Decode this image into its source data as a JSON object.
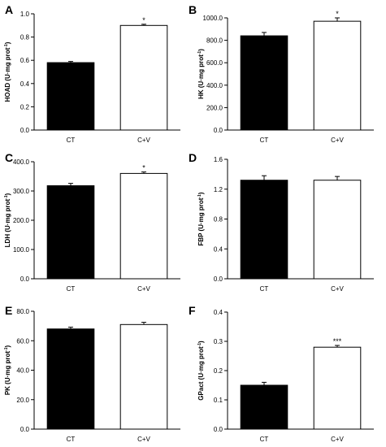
{
  "figure": {
    "colors": {
      "ct_fill": "#000000",
      "cv_fill": "#ffffff",
      "stroke": "#000000"
    }
  },
  "chart_data": [
    {
      "panel": "A",
      "type": "bar",
      "categories": [
        "CT",
        "C+V"
      ],
      "values": [
        0.58,
        0.9
      ],
      "errors": [
        0.01,
        0.01
      ],
      "significance": [
        "",
        "*"
      ],
      "ylabel_main": "HOAD (U·mg prot",
      "ylabel_sup": "-1",
      "ylabel_end": ")",
      "ylim": [
        0,
        1.0
      ],
      "yticks": [
        0,
        0.2,
        0.4,
        0.6,
        0.8,
        1.0
      ],
      "yticklabels": [
        "0.0",
        "0.2",
        "0.4",
        "0.6",
        "0.8",
        "1.0"
      ]
    },
    {
      "panel": "B",
      "type": "bar",
      "categories": [
        "CT",
        "C+V"
      ],
      "values": [
        840,
        970
      ],
      "errors": [
        30,
        30
      ],
      "significance": [
        "",
        "*"
      ],
      "ylabel_main": "HK (U·mg prot",
      "ylabel_sup": "-1",
      "ylabel_end": ")",
      "ylim": [
        0,
        1000
      ],
      "yticks": [
        0,
        200,
        400,
        600,
        800,
        1000
      ],
      "yticklabels": [
        "0.0",
        "200.0",
        "400.0",
        "600.0",
        "800.0",
        "1000.0"
      ]
    },
    {
      "panel": "C",
      "type": "bar",
      "categories": [
        "CT",
        "C+V"
      ],
      "values": [
        318,
        360
      ],
      "errors": [
        8,
        5
      ],
      "significance": [
        "",
        "*"
      ],
      "ylabel_main": "LDH (U·mg prot",
      "ylabel_sup": "-1",
      "ylabel_end": ")",
      "ylim": [
        0,
        400
      ],
      "yticks": [
        0,
        100,
        200,
        300,
        400
      ],
      "yticklabels": [
        "0.0",
        "100.0",
        "200.0",
        "300.0",
        "400.0"
      ]
    },
    {
      "panel": "D",
      "type": "bar",
      "categories": [
        "CT",
        "C+V"
      ],
      "values": [
        1.32,
        1.32
      ],
      "errors": [
        0.06,
        0.05
      ],
      "significance": [
        "",
        ""
      ],
      "ylabel_main": "FBP (U·mg prot",
      "ylabel_sup": "-1",
      "ylabel_end": ")",
      "ylim": [
        0,
        1.6
      ],
      "yticks": [
        0,
        0.4,
        0.8,
        1.2,
        1.6
      ],
      "yticklabels": [
        "0.0",
        "0.4",
        "0.8",
        "1.2",
        "1.6"
      ]
    },
    {
      "panel": "E",
      "type": "bar",
      "categories": [
        "CT",
        "C+V"
      ],
      "values": [
        68,
        71
      ],
      "errors": [
        1.2,
        1.5
      ],
      "significance": [
        "",
        ""
      ],
      "ylabel_main": "PK (U·mg prot",
      "ylabel_sup": "-1",
      "ylabel_end": ")",
      "ylim": [
        0,
        80
      ],
      "yticks": [
        0,
        20,
        40,
        60,
        80
      ],
      "yticklabels": [
        "0.0",
        "20.0",
        "40.0",
        "60.0",
        "80.0"
      ]
    },
    {
      "panel": "F",
      "type": "bar",
      "categories": [
        "CT",
        "C+V"
      ],
      "values": [
        0.15,
        0.28
      ],
      "errors": [
        0.01,
        0.006
      ],
      "significance": [
        "",
        "***"
      ],
      "ylabel_main": "GPact (U·mg prot",
      "ylabel_sup": "-1",
      "ylabel_end": ")",
      "ylim": [
        0,
        0.4
      ],
      "yticks": [
        0,
        0.1,
        0.2,
        0.3,
        0.4
      ],
      "yticklabels": [
        "0.0",
        "0.1",
        "0.2",
        "0.3",
        "0.4"
      ]
    }
  ]
}
